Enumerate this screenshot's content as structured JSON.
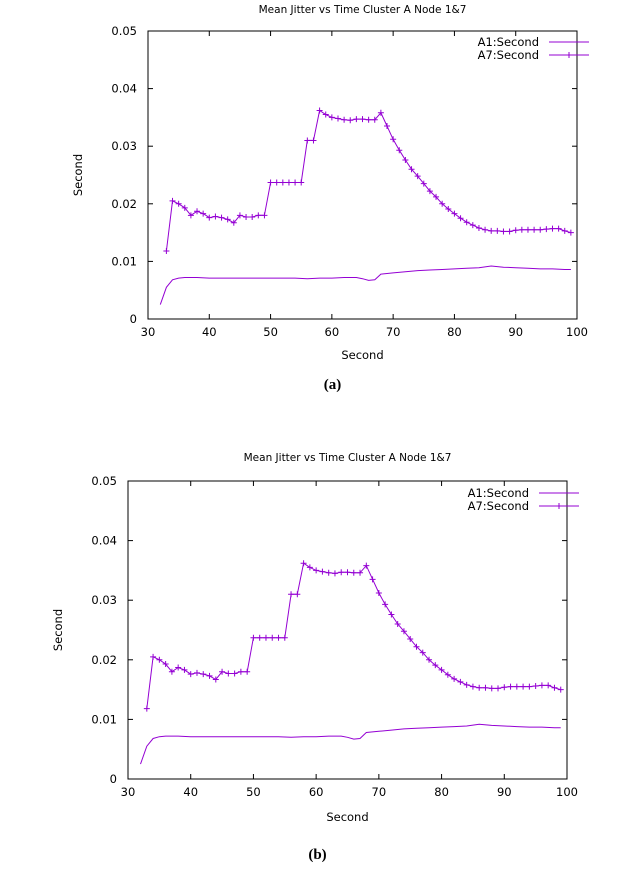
{
  "colors": {
    "series": "#9400d3",
    "axis": "#000000",
    "background": "#ffffff"
  },
  "chart_data": [
    {
      "type": "line",
      "title": "Mean Jitter vs Time Cluster A Node 1&7",
      "xlabel": "Second",
      "ylabel": "Second",
      "xlim": [
        30,
        100
      ],
      "ylim": [
        0,
        0.05
      ],
      "xticks": [
        30,
        40,
        50,
        60,
        70,
        80,
        90,
        100
      ],
      "yticks": [
        0,
        0.01,
        0.02,
        0.03,
        0.04,
        0.05
      ],
      "xtick_labels": [
        "30",
        "40",
        "50",
        "60",
        "70",
        "80",
        "90",
        "100"
      ],
      "ytick_labels": [
        "0",
        "0.01",
        "0.02",
        "0.03",
        "0.04",
        "0.05"
      ],
      "caption": "(a)",
      "legend": "top-right",
      "grid": false,
      "series": [
        {
          "name": "A1:Second",
          "marker": "none",
          "x": [
            32,
            33,
            34,
            35,
            36,
            38,
            40,
            42,
            44,
            46,
            48,
            50,
            52,
            54,
            56,
            58,
            60,
            62,
            64,
            65,
            66,
            67,
            68,
            70,
            72,
            74,
            76,
            78,
            80,
            82,
            84,
            86,
            88,
            90,
            92,
            94,
            96,
            98,
            99
          ],
          "values": [
            0.0025,
            0.0055,
            0.0068,
            0.0071,
            0.0072,
            0.0072,
            0.0071,
            0.0071,
            0.0071,
            0.0071,
            0.0071,
            0.0071,
            0.0071,
            0.0071,
            0.007,
            0.0071,
            0.0071,
            0.0072,
            0.0072,
            0.007,
            0.0067,
            0.0068,
            0.0078,
            0.008,
            0.0082,
            0.0084,
            0.0085,
            0.0086,
            0.0087,
            0.0088,
            0.0089,
            0.0092,
            0.009,
            0.0089,
            0.0088,
            0.0087,
            0.0087,
            0.0086,
            0.0086
          ]
        },
        {
          "name": "A7:Second",
          "marker": "plus",
          "x": [
            33,
            34,
            35,
            36,
            37,
            38,
            39,
            40,
            41,
            42,
            43,
            44,
            45,
            46,
            47,
            48,
            49,
            50,
            51,
            52,
            53,
            54,
            55,
            56,
            57,
            58,
            59,
            60,
            61,
            62,
            63,
            64,
            65,
            66,
            67,
            68,
            69,
            70,
            71,
            72,
            73,
            74,
            75,
            76,
            77,
            78,
            79,
            80,
            81,
            82,
            83,
            84,
            85,
            86,
            87,
            88,
            89,
            90,
            91,
            92,
            93,
            94,
            95,
            96,
            97,
            98,
            99
          ],
          "values": [
            0.0118,
            0.0205,
            0.02,
            0.0193,
            0.018,
            0.0187,
            0.0183,
            0.0176,
            0.0178,
            0.0176,
            0.0173,
            0.0167,
            0.018,
            0.0177,
            0.0177,
            0.018,
            0.018,
            0.0237,
            0.0237,
            0.0237,
            0.0237,
            0.0237,
            0.0237,
            0.031,
            0.031,
            0.0362,
            0.0355,
            0.035,
            0.0348,
            0.0346,
            0.0345,
            0.0347,
            0.0347,
            0.0346,
            0.0346,
            0.0358,
            0.0335,
            0.0312,
            0.0293,
            0.0276,
            0.026,
            0.0248,
            0.0235,
            0.0222,
            0.0212,
            0.02,
            0.0191,
            0.0183,
            0.0175,
            0.0168,
            0.0163,
            0.0158,
            0.0155,
            0.0153,
            0.0153,
            0.0152,
            0.0152,
            0.0154,
            0.0155,
            0.0155,
            0.0155,
            0.0155,
            0.0156,
            0.0157,
            0.0157,
            0.0153,
            0.015
          ]
        }
      ]
    },
    {
      "type": "line",
      "title": "Mean Jitter vs Time Cluster A Node 1&7",
      "xlabel": "Second",
      "ylabel": "Second",
      "xlim": [
        30,
        100
      ],
      "ylim": [
        0,
        0.05
      ],
      "xticks": [
        30,
        40,
        50,
        60,
        70,
        80,
        90,
        100
      ],
      "yticks": [
        0,
        0.01,
        0.02,
        0.03,
        0.04,
        0.05
      ],
      "xtick_labels": [
        "30",
        "40",
        "50",
        "60",
        "70",
        "80",
        "90",
        "100"
      ],
      "ytick_labels": [
        "0",
        "0.01",
        "0.02",
        "0.03",
        "0.04",
        "0.05"
      ],
      "caption": "(b)",
      "legend": "top-right",
      "grid": false,
      "series": [
        {
          "name": "A1:Second",
          "marker": "none",
          "x": [
            32,
            33,
            34,
            35,
            36,
            38,
            40,
            42,
            44,
            46,
            48,
            50,
            52,
            54,
            56,
            58,
            60,
            62,
            64,
            65,
            66,
            67,
            68,
            70,
            72,
            74,
            76,
            78,
            80,
            82,
            84,
            86,
            88,
            90,
            92,
            94,
            96,
            98,
            99
          ],
          "values": [
            0.0025,
            0.0055,
            0.0068,
            0.0071,
            0.0072,
            0.0072,
            0.0071,
            0.0071,
            0.0071,
            0.0071,
            0.0071,
            0.0071,
            0.0071,
            0.0071,
            0.007,
            0.0071,
            0.0071,
            0.0072,
            0.0072,
            0.007,
            0.0067,
            0.0068,
            0.0078,
            0.008,
            0.0082,
            0.0084,
            0.0085,
            0.0086,
            0.0087,
            0.0088,
            0.0089,
            0.0092,
            0.009,
            0.0089,
            0.0088,
            0.0087,
            0.0087,
            0.0086,
            0.0086
          ]
        },
        {
          "name": "A7:Second",
          "marker": "plus",
          "x": [
            33,
            34,
            35,
            36,
            37,
            38,
            39,
            40,
            41,
            42,
            43,
            44,
            45,
            46,
            47,
            48,
            49,
            50,
            51,
            52,
            53,
            54,
            55,
            56,
            57,
            58,
            59,
            60,
            61,
            62,
            63,
            64,
            65,
            66,
            67,
            68,
            69,
            70,
            71,
            72,
            73,
            74,
            75,
            76,
            77,
            78,
            79,
            80,
            81,
            82,
            83,
            84,
            85,
            86,
            87,
            88,
            89,
            90,
            91,
            92,
            93,
            94,
            95,
            96,
            97,
            98,
            99
          ],
          "values": [
            0.0118,
            0.0205,
            0.02,
            0.0193,
            0.018,
            0.0187,
            0.0183,
            0.0176,
            0.0178,
            0.0176,
            0.0173,
            0.0167,
            0.018,
            0.0177,
            0.0177,
            0.018,
            0.018,
            0.0237,
            0.0237,
            0.0237,
            0.0237,
            0.0237,
            0.0237,
            0.031,
            0.031,
            0.0362,
            0.0355,
            0.035,
            0.0348,
            0.0346,
            0.0345,
            0.0347,
            0.0347,
            0.0346,
            0.0346,
            0.0358,
            0.0335,
            0.0312,
            0.0293,
            0.0276,
            0.026,
            0.0248,
            0.0235,
            0.0222,
            0.0212,
            0.02,
            0.0191,
            0.0183,
            0.0175,
            0.0168,
            0.0163,
            0.0158,
            0.0155,
            0.0153,
            0.0153,
            0.0152,
            0.0152,
            0.0154,
            0.0155,
            0.0155,
            0.0155,
            0.0155,
            0.0156,
            0.0157,
            0.0157,
            0.0153,
            0.015
          ]
        }
      ]
    }
  ]
}
